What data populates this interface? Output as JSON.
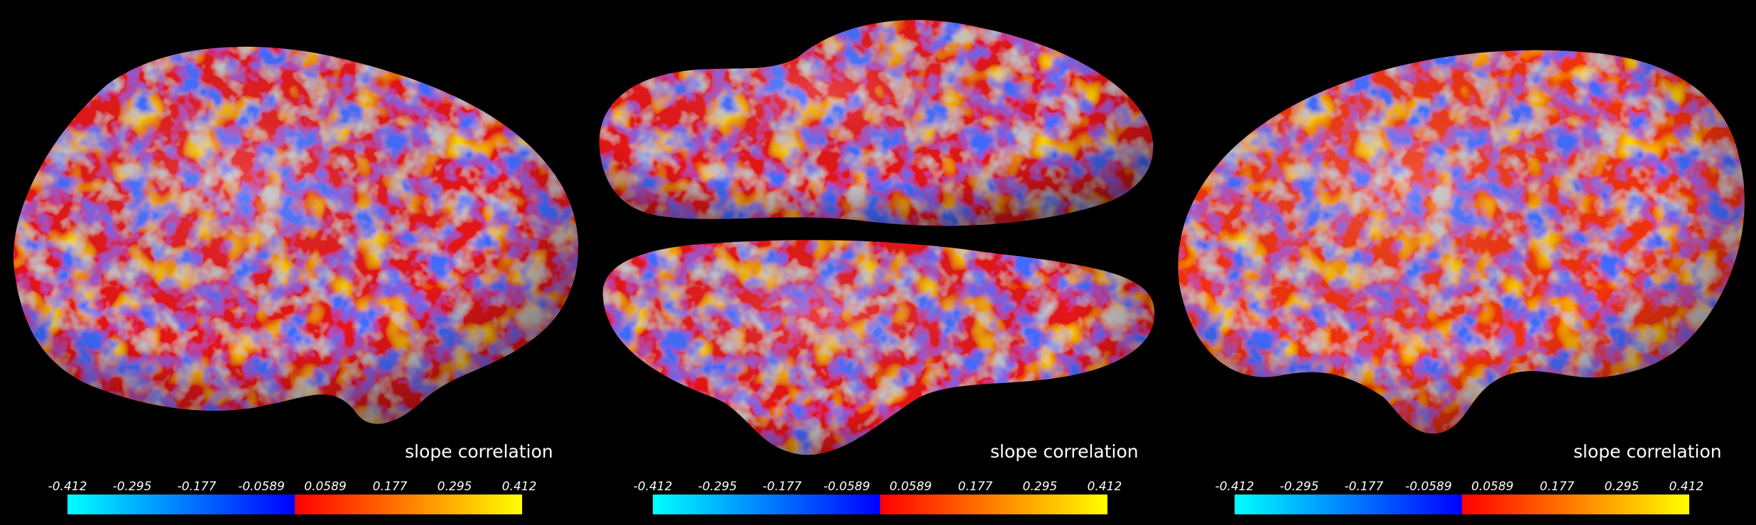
{
  "colors": {
    "background": "#000000",
    "negative_low": "#00ffff",
    "negative_high": "#0000ff",
    "positive_low": "#ff0000",
    "positive_high": "#ffff00",
    "surface_gray": "#808080"
  },
  "panels": [
    {
      "view": "lateral",
      "label": "slope correlation",
      "colorbar": {
        "ticks": [
          "-0.412",
          "-0.295",
          "-0.177",
          "-0.0589",
          "0.0589",
          "0.177",
          "0.295",
          "0.412"
        ]
      }
    },
    {
      "view": "ventral-dorsal",
      "label": "slope correlation",
      "colorbar": {
        "ticks": [
          "-0.412",
          "-0.295",
          "-0.177",
          "-0.0589",
          "0.0589",
          "0.177",
          "0.295",
          "0.412"
        ]
      }
    },
    {
      "view": "medial",
      "label": "slope correlation",
      "colorbar": {
        "ticks": [
          "-0.412",
          "-0.295",
          "-0.177",
          "-0.0589",
          "0.0589",
          "0.177",
          "0.295",
          "0.412"
        ]
      }
    }
  ]
}
